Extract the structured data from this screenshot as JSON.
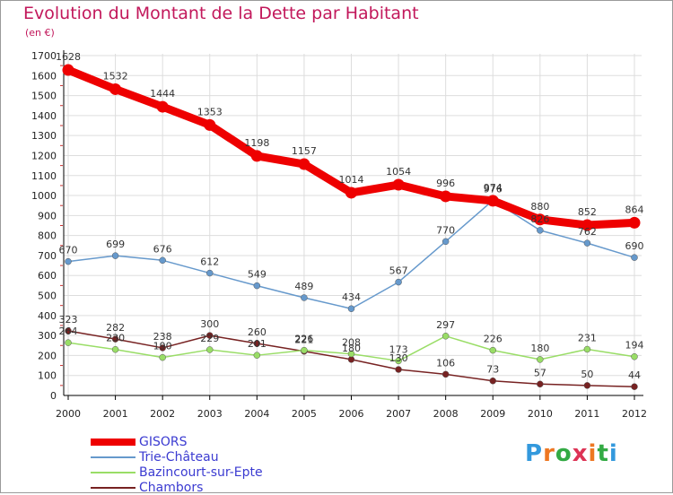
{
  "title": "Evolution du Montant de la Dette par Habitant",
  "subtitle": "(en €)",
  "logo_text": "Proxiti",
  "colors": {
    "title": "#c2185b",
    "axis": "#000000",
    "grid": "#dddddd",
    "legend_text": "#3b3bd1"
  },
  "chart_data": {
    "type": "line",
    "title": "Evolution du Montant de la Dette par Habitant",
    "ylabel": "(en €)",
    "xlabel": "",
    "x": [
      "2000",
      "2001",
      "2002",
      "2003",
      "2004",
      "2005",
      "2006",
      "2007",
      "2008",
      "2009",
      "2010",
      "2011",
      "2012"
    ],
    "ylim": [
      0,
      1700
    ],
    "yticks": [
      0,
      100,
      200,
      300,
      400,
      500,
      600,
      700,
      800,
      900,
      1000,
      1100,
      1200,
      1300,
      1400,
      1500,
      1600,
      1700
    ],
    "grid": true,
    "legend_position": "bottom-left",
    "series": [
      {
        "name": "GISORS",
        "color": "#ee0000",
        "values": [
          1628,
          1532,
          1444,
          1353,
          1198,
          1157,
          1014,
          1054,
          996,
          974,
          880,
          852,
          864
        ]
      },
      {
        "name": "Trie-Château",
        "color": "#6699cc",
        "values": [
          670,
          699,
          676,
          612,
          549,
          489,
          434,
          567,
          770,
          976,
          826,
          762,
          690
        ]
      },
      {
        "name": "Bazincourt-sur-Epte",
        "color": "#99dd66",
        "values": [
          264,
          230,
          190,
          229,
          201,
          226,
          208,
          173,
          297,
          226,
          180,
          231,
          194
        ]
      },
      {
        "name": "Chambors",
        "color": "#772222",
        "values": [
          323,
          282,
          238,
          300,
          260,
          221,
          180,
          130,
          106,
          73,
          57,
          50,
          44
        ]
      }
    ]
  }
}
